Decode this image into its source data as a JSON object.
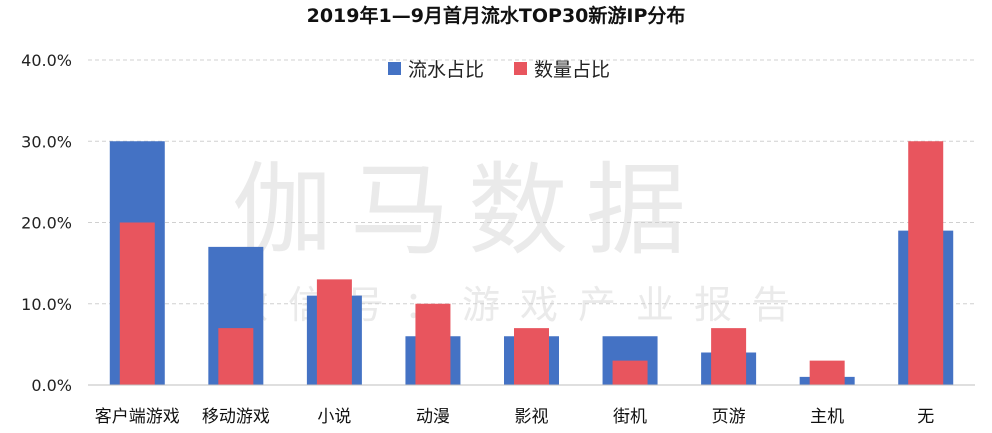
{
  "chart_data": {
    "type": "bar",
    "title": "2019年1—9月首月流水TOP30新游IP分布",
    "categories": [
      "客户端游戏",
      "移动游戏",
      "小说",
      "动漫",
      "影视",
      "街机",
      "页游",
      "主机",
      "无"
    ],
    "series": [
      {
        "name": "流水占比",
        "color": "#4472C4",
        "values": [
          30,
          17,
          11,
          6,
          6,
          6,
          4,
          1,
          19
        ]
      },
      {
        "name": "数量占比",
        "color": "#E8555E",
        "values": [
          20,
          7,
          13,
          10,
          7,
          3,
          7,
          3,
          30
        ]
      }
    ],
    "y_ticks": [
      "0.0%",
      "10.0%",
      "20.0%",
      "30.0%",
      "40.0%"
    ],
    "ylim": [
      0,
      40
    ],
    "xlabel": "",
    "ylabel": "",
    "grid": true,
    "legend_position": "top-center"
  },
  "watermark": {
    "main": "伽马数据",
    "sub": "微信号：游戏产业报告"
  }
}
